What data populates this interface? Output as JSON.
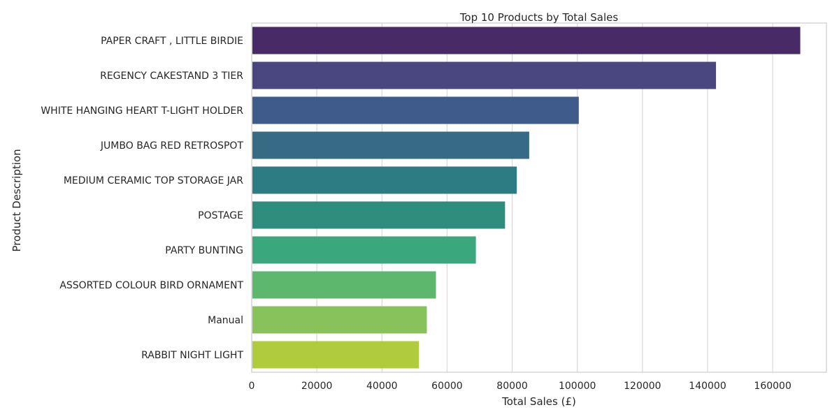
{
  "chart_data": {
    "type": "bar",
    "orientation": "horizontal",
    "title": "Top 10 Products by Total Sales",
    "xlabel": "Total Sales (£)",
    "ylabel": "Product Description",
    "xlim": [
      0,
      176500
    ],
    "xticks": [
      0,
      20000,
      40000,
      60000,
      80000,
      100000,
      120000,
      140000,
      160000
    ],
    "xtick_labels": [
      "0",
      "20000",
      "40000",
      "60000",
      "80000",
      "100000",
      "120000",
      "140000",
      "160000"
    ],
    "grid": "vertical",
    "categories": [
      "PAPER CRAFT , LITTLE BIRDIE",
      "REGENCY CAKESTAND 3 TIER",
      "WHITE HANGING HEART T-LIGHT HOLDER",
      "JUMBO BAG RED RETROSPOT",
      "MEDIUM CERAMIC TOP STORAGE JAR",
      "POSTAGE",
      "PARTY BUNTING",
      "ASSORTED COLOUR BIRD ORNAMENT",
      "Manual",
      "RABBIT NIGHT LIGHT"
    ],
    "values": [
      168469.6,
      142592.95,
      100448.15,
      85220.78,
      81416.73,
      77803.96,
      68844.33,
      56580.34,
      53779.93,
      51346.2
    ],
    "colors": [
      "#482a66",
      "#4a4780",
      "#3e5b8c",
      "#376a84",
      "#2d7c84",
      "#2f8d7e",
      "#3aa87c",
      "#5db86e",
      "#87c35a",
      "#b0cb3b"
    ]
  }
}
